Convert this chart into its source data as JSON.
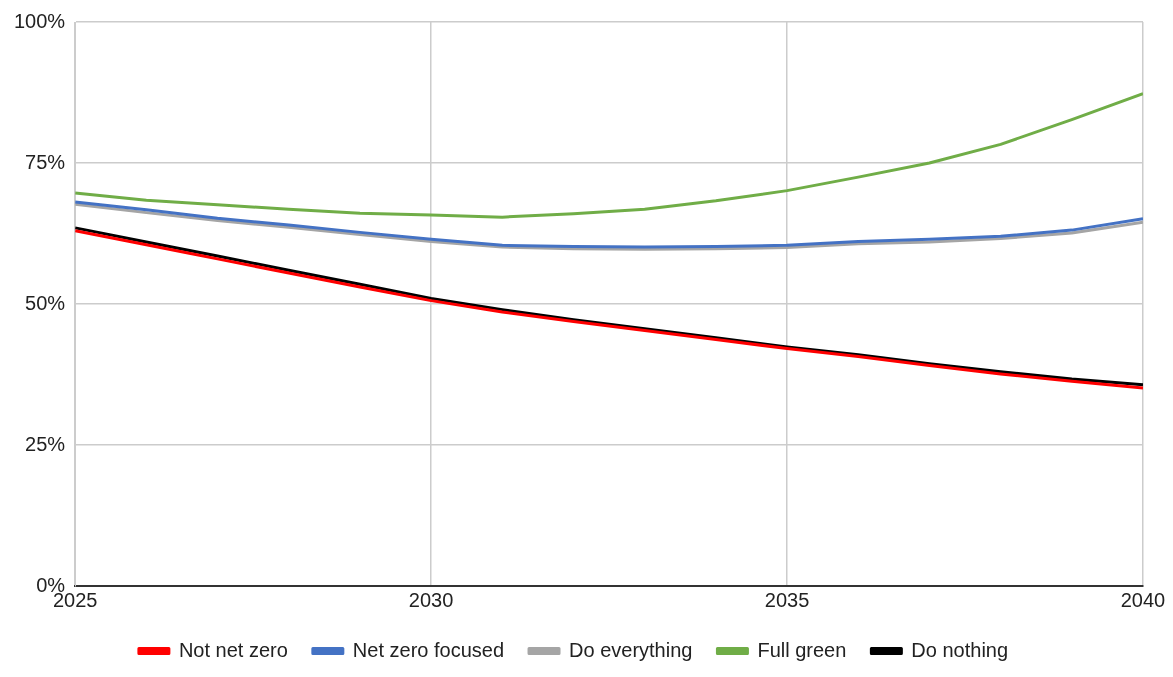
{
  "chart_data": {
    "type": "line",
    "x": [
      2025,
      2026,
      2027,
      2028,
      2029,
      2030,
      2031,
      2032,
      2033,
      2034,
      2035,
      2036,
      2037,
      2038,
      2039,
      2040
    ],
    "series": [
      {
        "name": "Not net zero",
        "color": "#ff0000",
        "values": [
          63.0,
          60.5,
          58.0,
          55.5,
          53.0,
          50.6,
          48.6,
          46.9,
          45.3,
          43.7,
          42.1,
          40.7,
          39.1,
          37.6,
          36.3,
          35.1
        ]
      },
      {
        "name": "Net zero focused",
        "color": "#4472c4",
        "values": [
          68.1,
          66.7,
          65.2,
          64.0,
          62.7,
          61.5,
          60.4,
          60.2,
          60.1,
          60.2,
          60.4,
          61.1,
          61.5,
          62.0,
          63.1,
          65.1
        ]
      },
      {
        "name": "Do everything",
        "color": "#a5a5a5",
        "values": [
          67.7,
          66.2,
          64.8,
          63.6,
          62.3,
          61.1,
          60.1,
          59.8,
          59.7,
          59.8,
          60.0,
          60.7,
          61.0,
          61.6,
          62.6,
          64.5
        ]
      },
      {
        "name": "Full green",
        "color": "#70ad47",
        "values": [
          69.7,
          68.4,
          67.6,
          66.8,
          66.1,
          65.8,
          65.4,
          66.0,
          66.8,
          68.3,
          70.1,
          72.5,
          75.0,
          78.3,
          82.7,
          87.3
        ]
      },
      {
        "name": "Do nothing",
        "color": "#000000",
        "values": [
          63.5,
          61.0,
          58.5,
          56.0,
          53.5,
          51.0,
          49.0,
          47.2,
          45.6,
          44.0,
          42.4,
          41.0,
          39.4,
          38.0,
          36.7,
          35.7
        ]
      }
    ],
    "xlim": [
      2025,
      2040
    ],
    "xticks": [
      2025,
      2030,
      2035,
      2040
    ],
    "ylim": [
      0,
      100
    ],
    "yticks": [
      {
        "value": 0,
        "label": "0%"
      },
      {
        "value": 25,
        "label": "25%"
      },
      {
        "value": 50,
        "label": "50%"
      },
      {
        "value": 75,
        "label": "75%"
      },
      {
        "value": 100,
        "label": "100%"
      }
    ],
    "grid": true,
    "legend": "bottom",
    "marker": "none",
    "line_style": "solid"
  }
}
